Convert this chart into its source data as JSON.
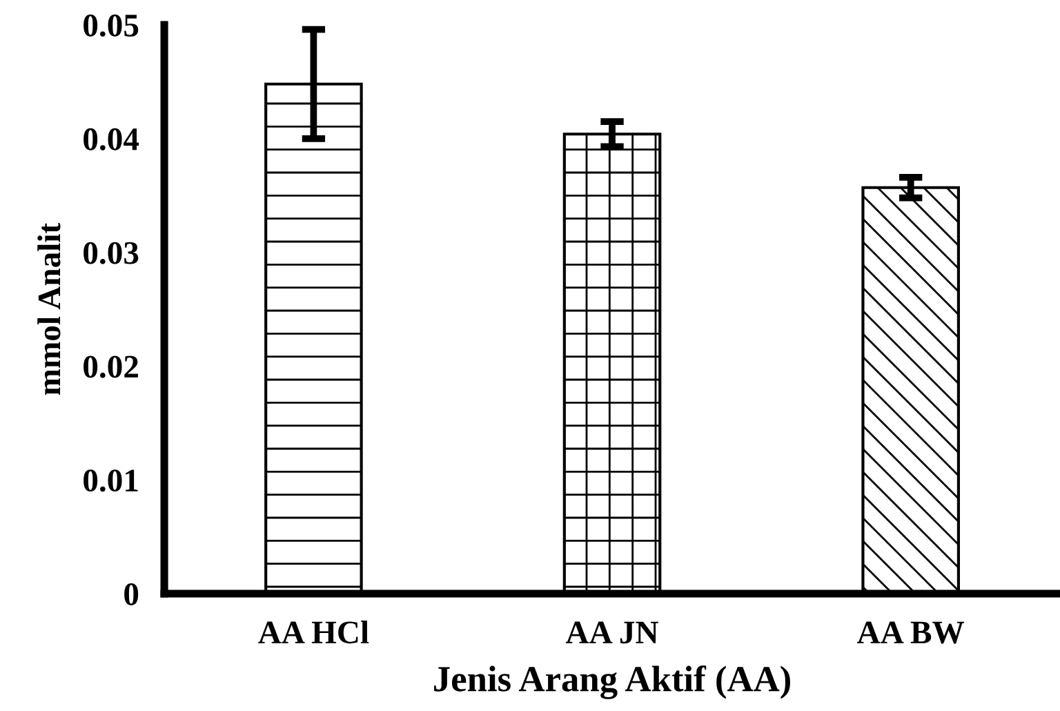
{
  "chart_data": {
    "type": "bar",
    "xlabel": "Jenis Arang Aktif (AA)",
    "ylabel": "mmol Analit",
    "categories": [
      "AA HCl",
      "AA JN",
      "AA BW"
    ],
    "values": [
      0.0448,
      0.0404,
      0.0357
    ],
    "errors": [
      0.0048,
      0.0011,
      0.0009
    ],
    "ylim": [
      0,
      0.05
    ],
    "yticks": [
      {
        "value": 0,
        "label": "0"
      },
      0.01,
      0.02,
      0.03,
      0.04,
      0.05
    ],
    "grid": false,
    "legend": false
  }
}
